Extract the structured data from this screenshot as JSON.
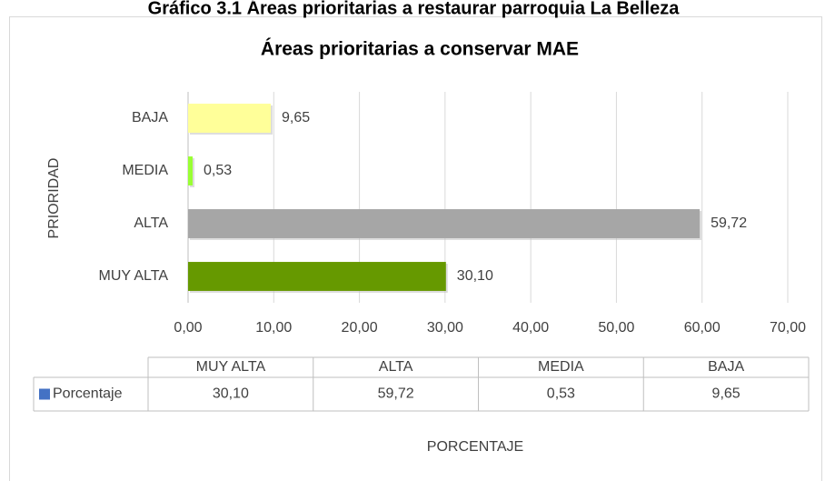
{
  "chart_data": {
    "type": "bar",
    "orientation": "horizontal",
    "caption": "Gráfico 3.1 Áreas prioritarias a restaurar parroquia La Belleza",
    "title": "Áreas prioritarias a conservar MAE",
    "y_label": "PRIORIDAD",
    "x_label": "PORCENTAJE",
    "categories": [
      "MUY ALTA",
      "ALTA",
      "MEDIA",
      "BAJA"
    ],
    "series": [
      {
        "name": "Porcentaje",
        "color": "#4472c4",
        "values": [
          30.1,
          59.72,
          0.53,
          9.65
        ],
        "value_labels": [
          "30,10",
          "59,72",
          "0,53",
          "9,65"
        ]
      }
    ],
    "colors": [
      "#669900",
      "#a6a6a6",
      "#99ff33",
      "#ffff99"
    ],
    "xlim": [
      0,
      70
    ],
    "xticks": [
      {
        "value": 0,
        "label": "0,00"
      },
      {
        "value": 10,
        "label": "10,00"
      },
      {
        "value": 20,
        "label": "20,00"
      },
      {
        "value": 30,
        "label": "30,00"
      },
      {
        "value": 40,
        "label": "40,00"
      },
      {
        "value": 50,
        "label": "50,00"
      },
      {
        "value": 60,
        "label": "60,00"
      },
      {
        "value": 70,
        "label": "70,00"
      }
    ],
    "grid": true,
    "data_table": true
  }
}
